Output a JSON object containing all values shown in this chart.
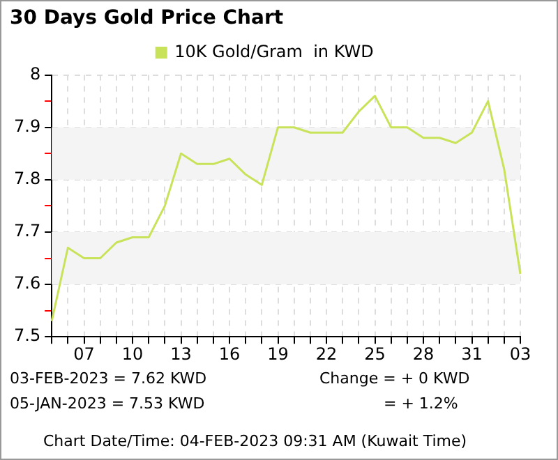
{
  "chart_data": {
    "type": "line",
    "title": "30 Days Gold Price Chart",
    "categories": [
      null,
      null,
      "07",
      null,
      null,
      "10",
      null,
      null,
      "13",
      null,
      null,
      "16",
      null,
      null,
      "19",
      null,
      null,
      "22",
      null,
      null,
      "25",
      null,
      null,
      "28",
      null,
      null,
      "31",
      null,
      null,
      "03"
    ],
    "series": [
      {
        "name": "10K Gold/Gram  in KWD",
        "color": "#c8e35a",
        "values": [
          7.53,
          7.67,
          7.65,
          7.65,
          7.68,
          7.69,
          7.69,
          7.75,
          7.85,
          7.83,
          7.83,
          7.84,
          7.81,
          7.79,
          7.9,
          7.9,
          7.89,
          7.89,
          7.89,
          7.93,
          7.96,
          7.9,
          7.9,
          7.88,
          7.88,
          7.87,
          7.89,
          7.95,
          7.82,
          7.62
        ]
      }
    ],
    "ylim": [
      7.5,
      8
    ],
    "yticks": [
      7.5,
      {
        "value": 7.55,
        "label": null
      },
      7.6,
      {
        "value": 7.65,
        "label": null
      },
      7.7,
      {
        "value": 7.75,
        "label": null
      },
      7.8,
      {
        "value": 7.85,
        "label": null
      },
      7.9,
      {
        "value": 7.95,
        "label": null
      },
      8
    ],
    "bands": [
      {
        "axis": "y",
        "from": 7.6,
        "to": 7.7,
        "color": "#f4f4f4"
      },
      {
        "axis": "y",
        "from": 7.8,
        "to": 7.9,
        "color": "#f4f4f4"
      }
    ],
    "grid": true,
    "legend": "top",
    "marker": "none",
    "line_style": "solid",
    "annotations": [
      "03-FEB-2023 = 7.62 KWD",
      "05-JAN-2023 = 7.53 KWD",
      "Change   = + 0 KWD",
      "= + 1.2%",
      "Chart Date/Time: 04-FEB-2023 09:31 AM (Kuwait Time)"
    ]
  }
}
